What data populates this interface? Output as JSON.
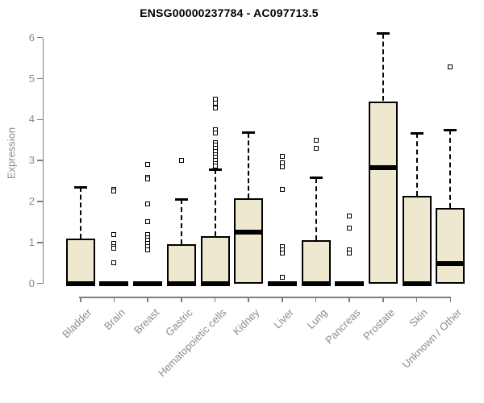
{
  "chart_data": {
    "type": "boxplot",
    "title": "ENSG00000237784 - AC097713.5",
    "ylabel": "Expression",
    "xlabel": "",
    "ylim": [
      0,
      6
    ],
    "yticks": [
      0,
      1,
      2,
      3,
      4,
      5,
      6
    ],
    "grid": false,
    "legend": "none",
    "categories": [
      "Bladder",
      "Brain",
      "Breast",
      "Gastric",
      "Hematopoietic cells",
      "Kidney",
      "Liver",
      "Lung",
      "Pancreas",
      "Prostate",
      "Skin",
      "Unknown / Other"
    ],
    "series": [
      {
        "label": "Bladder",
        "q1": 0,
        "median": 0,
        "q3": 1.1,
        "whisker_low": 0,
        "whisker_high": 2.35,
        "outliers": []
      },
      {
        "label": "Brain",
        "q1": 0,
        "median": 0,
        "q3": 0,
        "whisker_low": 0,
        "whisker_high": 0,
        "outliers": [
          2.3,
          2.25,
          1.2,
          0.97,
          0.9,
          0.85,
          0.5
        ]
      },
      {
        "label": "Breast",
        "q1": 0,
        "median": 0,
        "q3": 0,
        "whisker_low": 0,
        "whisker_high": 0,
        "outliers": [
          2.9,
          2.6,
          2.55,
          1.95,
          1.5,
          1.2,
          1.12,
          1.05,
          0.97,
          0.9,
          0.83
        ]
      },
      {
        "label": "Gastric",
        "q1": 0,
        "median": 0,
        "q3": 0.95,
        "whisker_low": 0,
        "whisker_high": 2.05,
        "outliers": [
          3.0
        ]
      },
      {
        "label": "Hematopoietic cells",
        "q1": 0,
        "median": 0,
        "q3": 1.15,
        "whisker_low": 0,
        "whisker_high": 2.78,
        "outliers": [
          4.5,
          4.4,
          4.28,
          3.75,
          3.68,
          3.44,
          3.37,
          3.3,
          3.22,
          3.15,
          3.08,
          3.0,
          2.93,
          2.87
        ]
      },
      {
        "label": "Kidney",
        "q1": 0,
        "median": 1.25,
        "q3": 2.07,
        "whisker_low": 0,
        "whisker_high": 3.68,
        "outliers": []
      },
      {
        "label": "Liver",
        "q1": 0,
        "median": 0,
        "q3": 0,
        "whisker_low": 0,
        "whisker_high": 0,
        "outliers": [
          3.1,
          2.95,
          2.85,
          2.3,
          0.9,
          0.82,
          0.75,
          0.15
        ]
      },
      {
        "label": "Lung",
        "q1": 0,
        "median": 0,
        "q3": 1.05,
        "whisker_low": 0,
        "whisker_high": 2.58,
        "outliers": [
          3.5,
          3.3
        ]
      },
      {
        "label": "Pancreas",
        "q1": 0,
        "median": 0,
        "q3": 0,
        "whisker_low": 0,
        "whisker_high": 0,
        "outliers": [
          1.65,
          1.35,
          0.82,
          0.75
        ]
      },
      {
        "label": "Prostate",
        "q1": 0,
        "median": 2.82,
        "q3": 4.45,
        "whisker_low": 0,
        "whisker_high": 6.1,
        "outliers": []
      },
      {
        "label": "Skin",
        "q1": 0,
        "median": 0,
        "q3": 2.13,
        "whisker_low": 0,
        "whisker_high": 3.67,
        "outliers": []
      },
      {
        "label": "Unknown / Other",
        "q1": 0,
        "median": 0.48,
        "q3": 1.85,
        "whisker_low": 0,
        "whisker_high": 3.75,
        "outliers": [
          5.28
        ]
      }
    ],
    "colors": {
      "box_fill": "#EDE8CE",
      "box_border": "#000000",
      "median": "#000000",
      "whisker": "#000000",
      "outlier_border": "#000000",
      "outlier_fill": "#FFFFFF",
      "axis": "#7E7E7E",
      "tick_label": "#8C8C8C",
      "title": "#000000"
    }
  }
}
